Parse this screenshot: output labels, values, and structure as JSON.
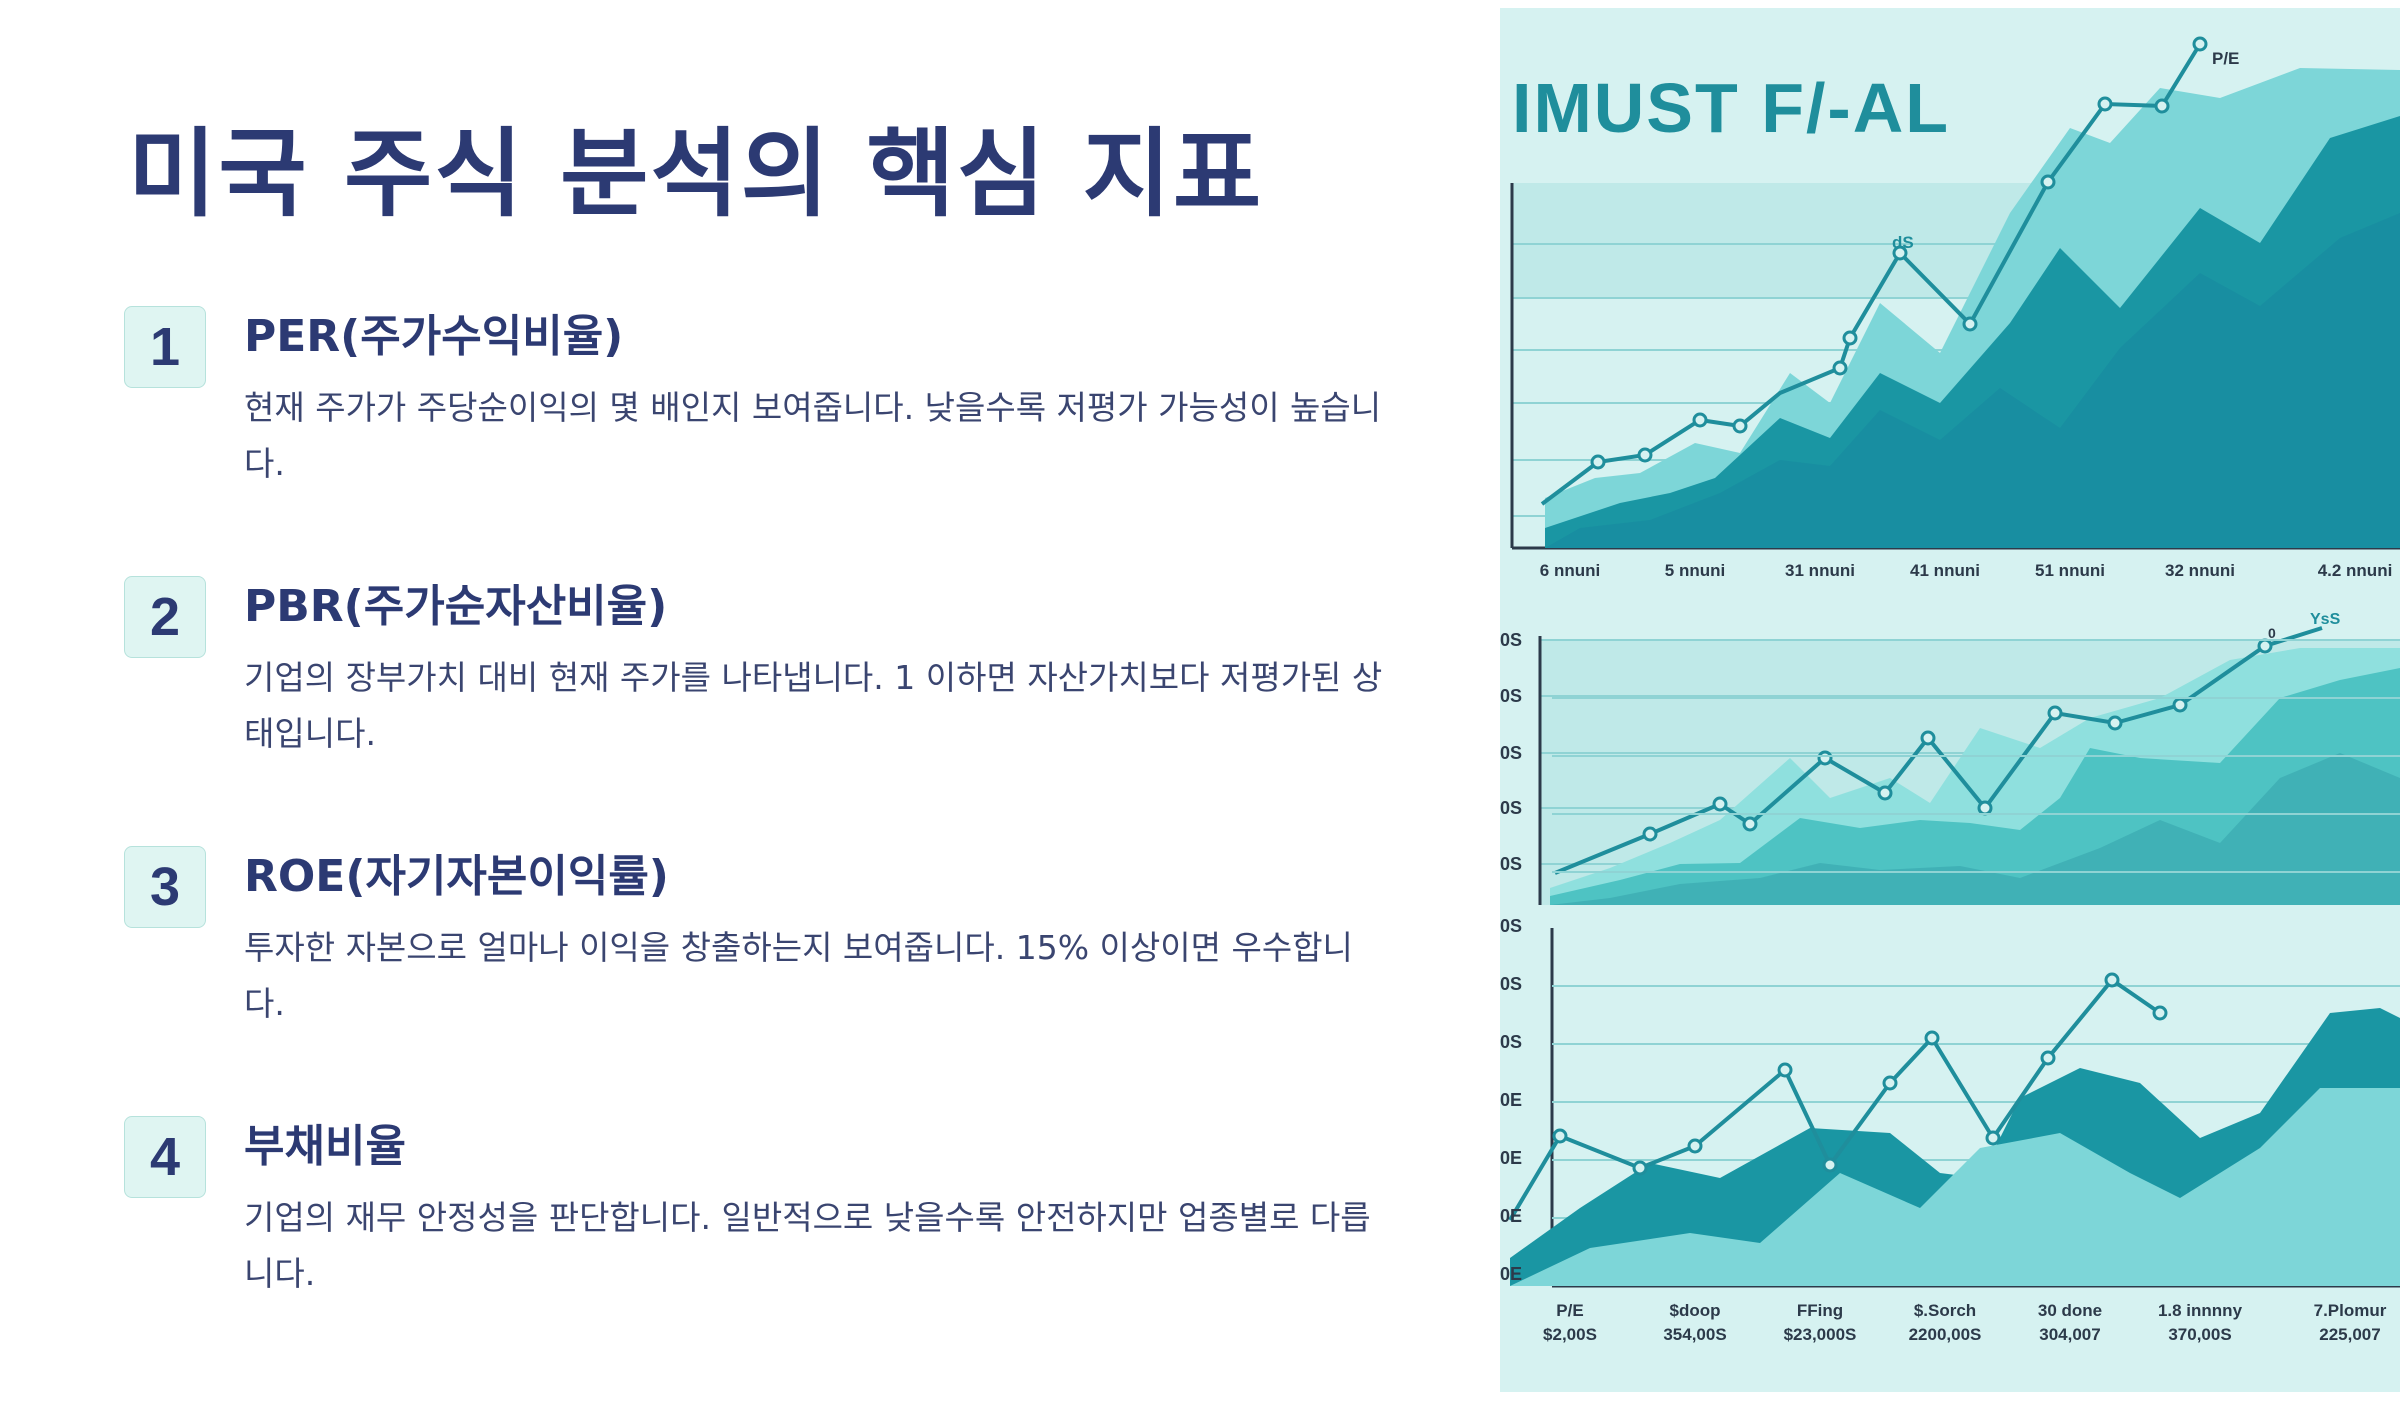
{
  "page": {
    "title": "미국 주식 분석의 핵심 지표"
  },
  "items": [
    {
      "num": "1",
      "title": "PER(주가수익비율)",
      "desc": "현재 주가가 주당순이익의 몇 배인지 보여줍니다. 낮을수록 저평가 가능성이 높습니다."
    },
    {
      "num": "2",
      "title": "PBR(주가순자산비율)",
      "desc": "기업의 장부가치 대비 현재 주가를 나타냅니다. 1 이하면 자산가치보다 저평가된 상태입니다."
    },
    {
      "num": "3",
      "title": "ROE(자기자본이익률)",
      "desc": "투자한 자본으로 얼마나 이익을 창출하는지 보여줍니다. 15% 이상이면 우수합니다."
    },
    {
      "num": "4",
      "title": "부채비율",
      "desc": "기업의 재무 안정성을 판단합니다. 일반적으로 낮을수록 안전하지만 업종별로 다릅니다."
    }
  ],
  "illustration": {
    "banner": "IMUST F/-AL",
    "colors": {
      "bg": "#d6f2f1",
      "dark": "#1a96a3",
      "mid": "#5ccfd2",
      "light": "#8fe0de",
      "line": "#1f8e9c"
    },
    "chart1": {
      "tag_top": "P/E",
      "tag_mid": "dS",
      "x_labels": [
        "6 nnuni",
        "5 nnuni",
        "31 nnuni",
        "41 nnuni",
        "51 nnuni",
        "32 nnuni",
        "4.2 nnuni"
      ]
    },
    "chart2": {
      "tag_top": "YsS",
      "tag_small": "0",
      "y_labels": [
        "0S",
        "0S",
        "0S",
        "0S",
        "0S"
      ]
    },
    "chart3": {
      "y_labels": [
        "0S",
        "0S",
        "0S",
        "0E",
        "0E",
        "0E",
        "0E"
      ],
      "x_labels_top": [
        "P/E",
        "$doop",
        "FFing",
        "$.Sorch",
        "30 done",
        "1.8 innnny",
        "7.Plomur"
      ],
      "x_labels_bottom": [
        "$2,00S",
        "354,00S",
        "$23,000S",
        "2200,00S",
        "304,007",
        "370,00S",
        "225,007"
      ]
    }
  }
}
